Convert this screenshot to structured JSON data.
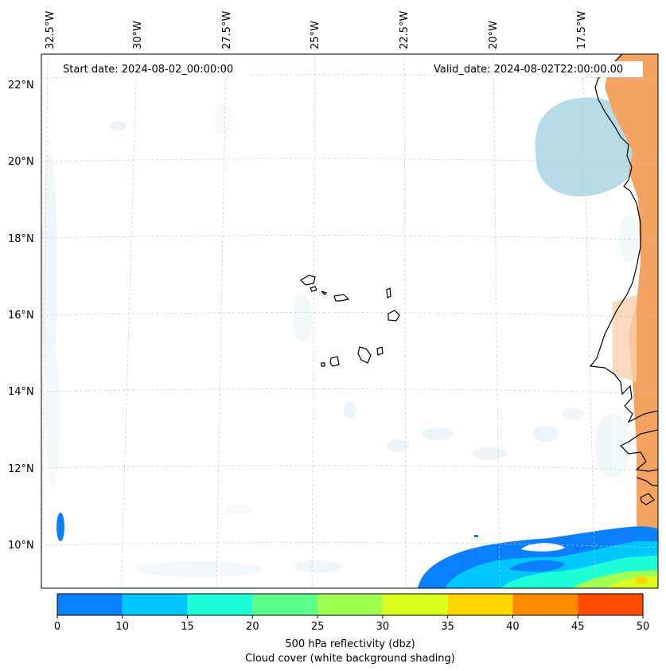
{
  "annotations": {
    "start": "Start date: 2024-08-02_00:00:00",
    "valid": "Valid_date: 2024-08-02T22:00:00.00"
  },
  "axes": {
    "lon_labels": [
      "32.5°W",
      "30°W",
      "27.5°W",
      "25°W",
      "22.5°W",
      "20°W",
      "17.5°W"
    ],
    "lat_labels": [
      "22°N",
      "20°N",
      "18°N",
      "16°N",
      "14°N",
      "12°N",
      "10°N"
    ]
  },
  "colorbar": {
    "ticks": [
      "0",
      "10",
      "15",
      "20",
      "25",
      "30",
      "35",
      "40",
      "45",
      "50"
    ],
    "colors": [
      "#0a80ff",
      "#00c8ff",
      "#1effd8",
      "#5cff8c",
      "#a0ff50",
      "#dcff1e",
      "#ffd700",
      "#ff8c00",
      "#ff4c00"
    ],
    "label_line1": "500 hPa reflectivity (dbz)",
    "label_line2": "Cloud cover (white background shading)"
  },
  "fields": {
    "cloud_color": "#add8e6",
    "land_shading_color": "#f4a460"
  }
}
